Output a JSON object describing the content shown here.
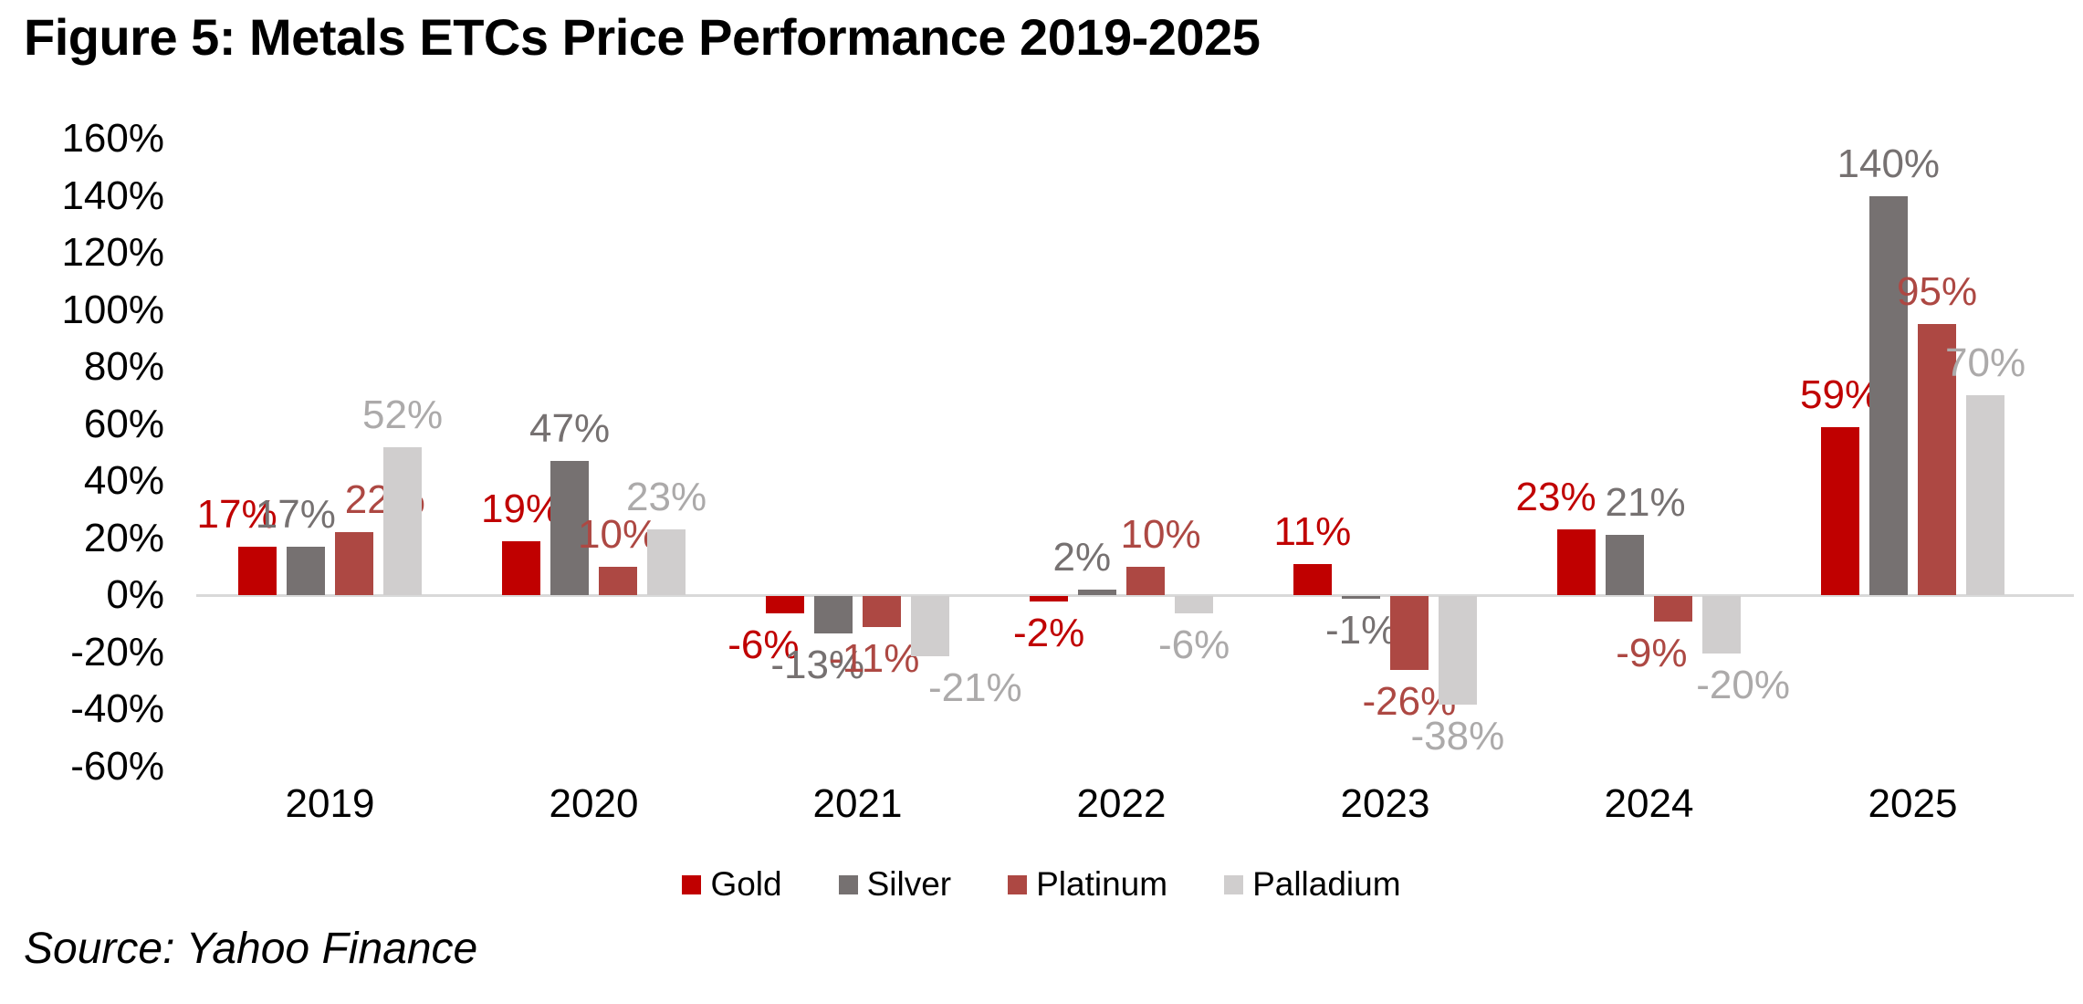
{
  "title": "Figure 5: Metals ETCs Price Performance 2019-2025",
  "source_note": "Source: Yahoo Finance",
  "axis_line_color": "#D9D9D9",
  "chart_data": {
    "type": "bar",
    "title": "Figure 5: Metals ETCs Price Performance 2019-2025",
    "categories": [
      "2019",
      "2020",
      "2021",
      "2022",
      "2023",
      "2024",
      "2025"
    ],
    "series": [
      {
        "name": "Gold",
        "color": "#C00000",
        "label_color": "#C00000",
        "values": [
          17,
          19,
          -6,
          -2,
          11,
          23,
          59
        ]
      },
      {
        "name": "Silver",
        "color": "#767171",
        "label_color": "#767171",
        "values": [
          17,
          47,
          -13,
          2,
          -1,
          21,
          140
        ]
      },
      {
        "name": "Platinum",
        "color": "#AD4843",
        "label_color": "#AD4843",
        "values": [
          22,
          10,
          -11,
          10,
          -26,
          -9,
          95
        ]
      },
      {
        "name": "Palladium",
        "color": "#D0CECE",
        "label_color": "#ACAAAA",
        "values": [
          52,
          23,
          -21,
          -6,
          -38,
          -20,
          70
        ]
      }
    ],
    "value_suffix": "%",
    "ylim": [
      -60,
      160
    ],
    "ytick_step": 20,
    "yticks": [
      "160%",
      "140%",
      "120%",
      "100%",
      "80%",
      "60%",
      "40%",
      "20%",
      "0%",
      "-20%",
      "-40%",
      "-60%"
    ],
    "xlabel": "",
    "ylabel": "",
    "grid": false,
    "data_labels": true,
    "legend_position": "bottom"
  }
}
